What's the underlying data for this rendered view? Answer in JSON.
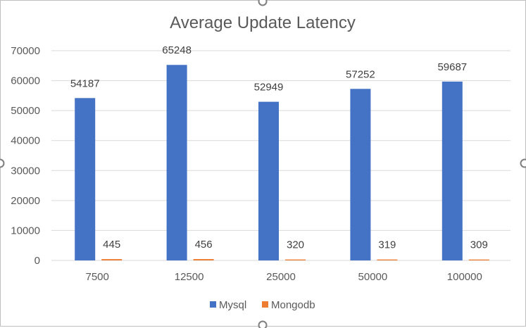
{
  "chart_data": {
    "type": "bar",
    "title": "Average Update Latency",
    "xlabel": "",
    "ylabel": "",
    "categories": [
      "7500",
      "12500",
      "25000",
      "50000",
      "100000"
    ],
    "series": [
      {
        "name": "Mysql",
        "values": [
          54187,
          65248,
          52949,
          57252,
          59687
        ],
        "color": "#4472C4"
      },
      {
        "name": "Mongodb",
        "values": [
          445,
          456,
          320,
          319,
          309
        ],
        "color": "#ED7D31"
      }
    ],
    "ylim": [
      0,
      70000
    ],
    "yticks": [
      0,
      10000,
      20000,
      30000,
      40000,
      50000,
      60000,
      70000
    ],
    "grid": true,
    "legend": "bottom",
    "data_labels": true
  },
  "colors": {
    "gridline": "#d9d9d9",
    "text": "#595959",
    "frame": "#bfbfbf",
    "handle": "#7f7f7f"
  }
}
